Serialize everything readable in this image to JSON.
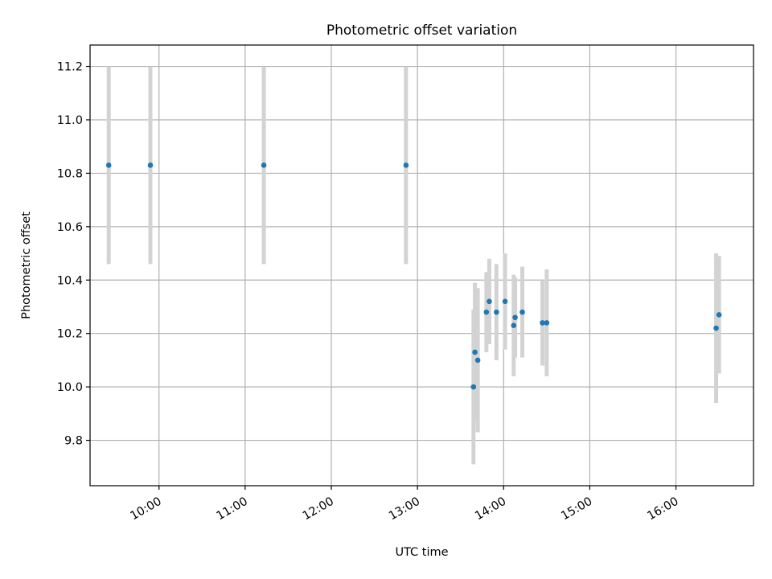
{
  "chart_data": {
    "type": "scatter",
    "title": "Photometric offset variation",
    "xlabel": "UTC time",
    "ylabel": "Photometric offset",
    "xlim": [
      "09:12",
      "16:54"
    ],
    "ylim": [
      9.63,
      11.28
    ],
    "xticks": [
      "10:00",
      "11:00",
      "12:00",
      "13:00",
      "14:00",
      "15:00",
      "16:00"
    ],
    "yticks": [
      9.8,
      10.0,
      10.2,
      10.4,
      10.6,
      10.8,
      11.0,
      11.2
    ],
    "ytick_labels": [
      "9.8",
      "10.0",
      "10.2",
      "10.4",
      "10.6",
      "10.8",
      "11.0",
      "11.2"
    ],
    "grid": true,
    "colors": {
      "points": "#1f77b4",
      "errorbars": "#d3d3d3",
      "grid": "#b0b0b0"
    },
    "points": [
      {
        "x": "09:25",
        "y": 10.83,
        "err": 0.37
      },
      {
        "x": "09:54",
        "y": 10.83,
        "err": 0.37
      },
      {
        "x": "11:13",
        "y": 10.83,
        "err": 0.37
      },
      {
        "x": "12:52",
        "y": 10.83,
        "err": 0.37
      },
      {
        "x": "13:39",
        "y": 10.0,
        "err": 0.29
      },
      {
        "x": "13:40",
        "y": 10.13,
        "err": 0.26
      },
      {
        "x": "13:42",
        "y": 10.1,
        "err": 0.27
      },
      {
        "x": "13:48",
        "y": 10.28,
        "err": 0.15
      },
      {
        "x": "13:50",
        "y": 10.32,
        "err": 0.16
      },
      {
        "x": "13:55",
        "y": 10.28,
        "err": 0.18
      },
      {
        "x": "14:01",
        "y": 10.32,
        "err": 0.18
      },
      {
        "x": "14:07",
        "y": 10.23,
        "err": 0.19
      },
      {
        "x": "14:08",
        "y": 10.26,
        "err": 0.15
      },
      {
        "x": "14:13",
        "y": 10.28,
        "err": 0.17
      },
      {
        "x": "14:27",
        "y": 10.24,
        "err": 0.16
      },
      {
        "x": "14:30",
        "y": 10.24,
        "err": 0.2
      },
      {
        "x": "16:28",
        "y": 10.22,
        "err": 0.28
      },
      {
        "x": "16:30",
        "y": 10.27,
        "err": 0.22
      }
    ]
  }
}
